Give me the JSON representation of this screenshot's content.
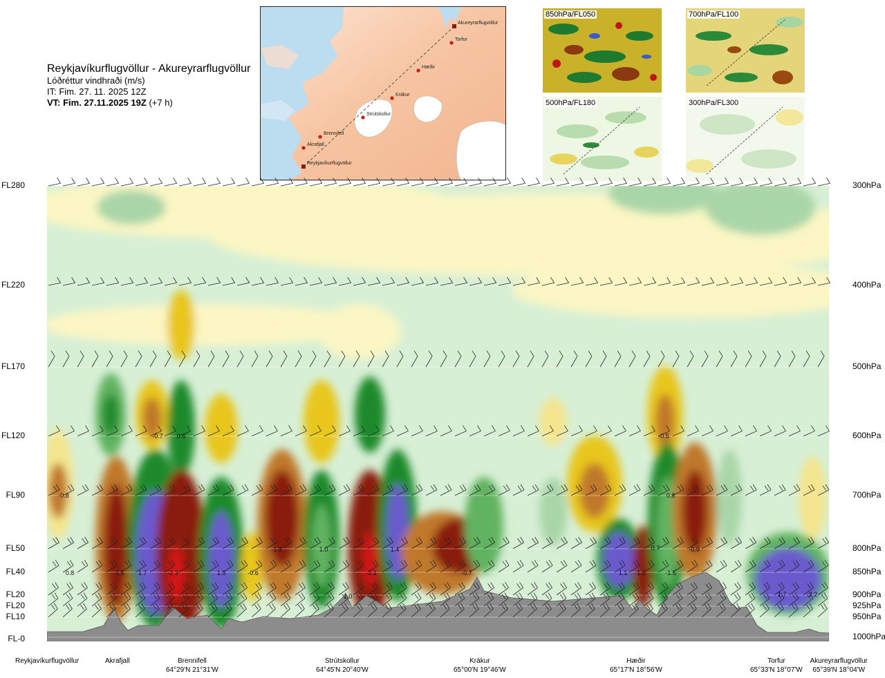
{
  "header": {
    "title": "Reykjavíkurflugvöllur - Akureyrarflugvöllur",
    "variable": "Lóðréttur vindhraði (m/s)",
    "issue_time": "IT: Fim. 27. 11. 2025 12Z",
    "valid_time_label": "VT: Fim. 27.11.2025 19Z",
    "valid_time_offset": "(+7 h)"
  },
  "route_map": {
    "points": [
      {
        "name": "Akureyrarflugvöllur"
      },
      {
        "name": "Torfur"
      },
      {
        "name": "Hæðir"
      },
      {
        "name": "Krákur"
      },
      {
        "name": "Strútskollur"
      },
      {
        "name": "Brennifell"
      },
      {
        "name": "Akrafjall"
      },
      {
        "name": "Reykjavíkurflugvöllur"
      }
    ]
  },
  "thumbnails": [
    {
      "label": "850hPa/FL050"
    },
    {
      "label": "700hPa/FL100"
    },
    {
      "label": "500hPa/FL180"
    },
    {
      "label": "300hPa/FL300"
    }
  ],
  "chart_data": {
    "type": "heatmap",
    "title": "Lóðréttur vindhraði (m/s)",
    "y_axis_left": [
      "FL280",
      "FL220",
      "FL170",
      "FL120",
      "FL90",
      "FL50",
      "FL40",
      "FL20",
      "FL20",
      "FL10",
      "FL-0"
    ],
    "y_axis_right": [
      "300hPa",
      "400hPa",
      "500hPa",
      "600hPa",
      "700hPa",
      "800hPa",
      "850hPa",
      "900hPa",
      "925hPa",
      "950hPa",
      "1000hPa"
    ],
    "ylim_hpa": [
      1000,
      300
    ],
    "locations": [
      {
        "name": "Reykjavíkurflugvöllur",
        "coord": ""
      },
      {
        "name": "Akrafjall",
        "coord": ""
      },
      {
        "name": "Brennifell",
        "coord": "64°29'N 21°31'W"
      },
      {
        "name": "Strútskollur",
        "coord": "64°45'N 20°40'W"
      },
      {
        "name": "Krákur",
        "coord": "65°00'N 19°46'W"
      },
      {
        "name": "Hæðir",
        "coord": "65°17'N 18°56'W"
      },
      {
        "name": "Torfur",
        "coord": "65°33'N 18°07'W"
      },
      {
        "name": "Akureyrarflugvöllur",
        "coord": "65°39'N 18°04'W"
      }
    ],
    "annotations": [
      "-0.8",
      "-0.7",
      "0.6",
      "-0.5",
      "0.8",
      "0.8",
      "-1.5",
      "1.7",
      "-2.3",
      "1.3",
      "-0.6",
      "-1.8",
      "1.0",
      "-2.1",
      "1.4",
      "-0.7",
      "1.1",
      "-1.0",
      "0.7",
      "-0.9",
      "-1.5",
      "1.0",
      "1.7",
      "2.2"
    ],
    "colors": {
      "strong_up": "#6a5acd",
      "up_2": "#1e8a2a",
      "up_1": "#60b360",
      "up_0": "#a9d6a9",
      "weak": "#d7efd5",
      "neutral_light": "#fbf6c4",
      "down_0": "#f4e58e",
      "down_1": "#e8c61b",
      "down_2": "#c0782a",
      "down_3": "#8a1f0e",
      "extreme_down": "#d41212",
      "terrain": "#8c8c8c"
    }
  }
}
